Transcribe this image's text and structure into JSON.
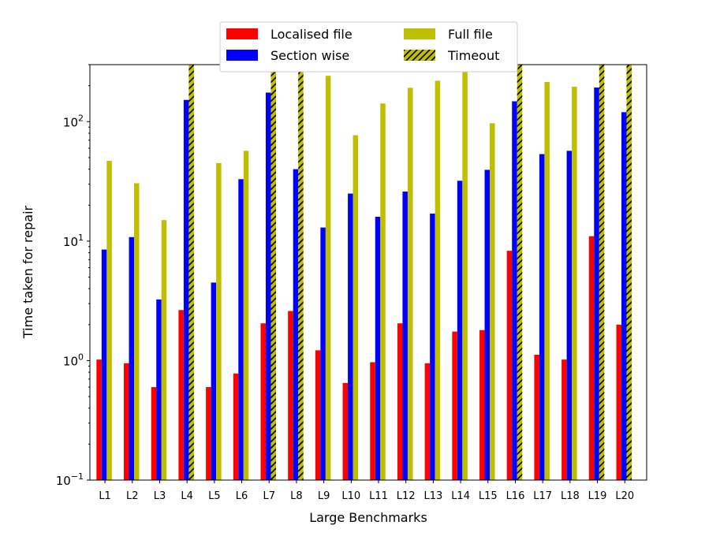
{
  "chart_data": {
    "type": "bar",
    "title": "",
    "xlabel": "Large Benchmarks",
    "ylabel": "Time taken for repair",
    "yscale": "log",
    "ylim": [
      0.1,
      300
    ],
    "grid": false,
    "legend_placement": "top-center",
    "yticks": [
      {
        "value": 0.1,
        "base": "10",
        "exp": "−1"
      },
      {
        "value": 1,
        "base": "10",
        "exp": "0"
      },
      {
        "value": 10,
        "base": "10",
        "exp": "1"
      },
      {
        "value": 100,
        "base": "10",
        "exp": "2"
      }
    ],
    "categories": [
      "L1",
      "L2",
      "L3",
      "L4",
      "L5",
      "L6",
      "L7",
      "L8",
      "L9",
      "L10",
      "L11",
      "L12",
      "L13",
      "L14",
      "L15",
      "L16",
      "L17",
      "L18",
      "L19",
      "L20"
    ],
    "series": [
      {
        "name": "Localised file",
        "color": "#ff0000",
        "values": [
          1.02,
          0.95,
          0.6,
          2.65,
          0.6,
          0.78,
          2.05,
          2.6,
          1.22,
          0.65,
          0.97,
          2.05,
          0.95,
          1.75,
          1.8,
          8.3,
          1.12,
          1.02,
          11.0,
          2.0
        ]
      },
      {
        "name": "Section wise",
        "color": "#0000ff",
        "values": [
          8.5,
          10.8,
          3.25,
          152,
          4.5,
          33,
          175,
          40,
          13,
          25,
          16,
          26,
          17,
          32,
          39.5,
          148,
          53.5,
          57,
          193,
          120
        ]
      },
      {
        "name": "Full file",
        "color": "#bfbf00",
        "values": [
          47,
          30.5,
          15,
          null,
          45,
          57,
          null,
          null,
          242,
          77,
          142,
          192,
          220,
          262,
          97,
          null,
          215,
          196,
          null,
          null
        ]
      },
      {
        "name": "Timeout",
        "color": "#bfbf00",
        "hatch": true,
        "values": [
          null,
          null,
          null,
          300,
          null,
          null,
          300,
          300,
          null,
          null,
          null,
          null,
          null,
          null,
          null,
          300,
          null,
          null,
          300,
          300
        ]
      }
    ]
  }
}
